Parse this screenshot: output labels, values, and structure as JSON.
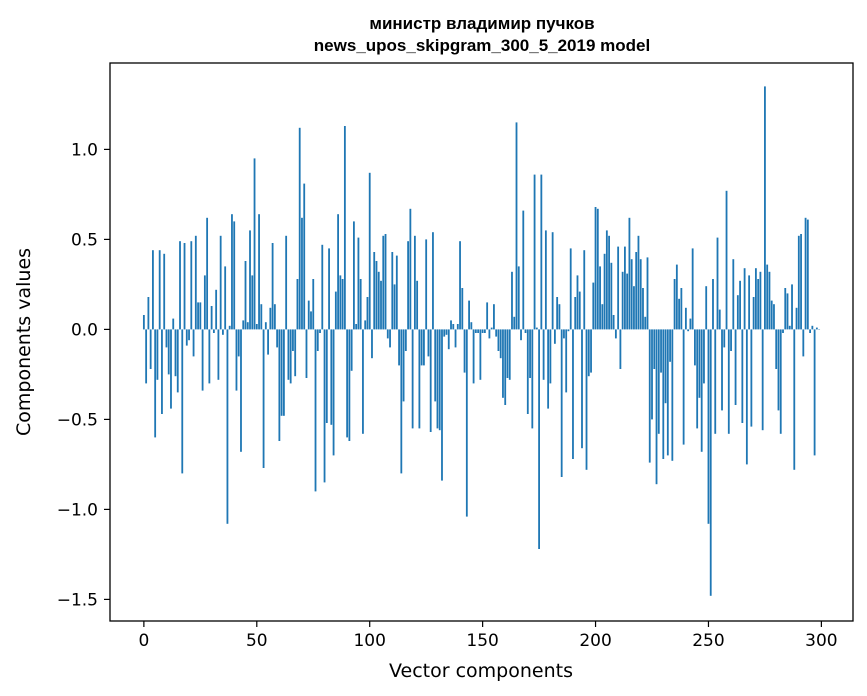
{
  "chart_data": {
    "type": "bar",
    "title": "министр владимир пучков",
    "subtitle": "news_upos_skipgram_300_5_2019 model",
    "xlabel": "Vector components",
    "ylabel": "Components values",
    "xlim": [
      -15,
      314
    ],
    "ylim": [
      -1.62,
      1.48
    ],
    "xticks": [
      0,
      50,
      100,
      150,
      200,
      250,
      300
    ],
    "xtick_labels": [
      "0",
      "50",
      "100",
      "150",
      "200",
      "250",
      "300"
    ],
    "yticks": [
      -1.5,
      -1.0,
      -0.5,
      0.0,
      0.5,
      1.0
    ],
    "ytick_labels": [
      "−1.5",
      "−1.0",
      "−0.5",
      "0.0",
      "0.5",
      "1.0"
    ],
    "bar_color": "#1f77b4",
    "grid": false,
    "legend": "none",
    "values": [
      0.08,
      -0.3,
      0.18,
      -0.22,
      0.44,
      -0.6,
      -0.28,
      0.44,
      -0.47,
      0.42,
      -0.1,
      -0.25,
      -0.44,
      0.06,
      -0.26,
      -0.35,
      0.49,
      -0.8,
      0.48,
      -0.09,
      -0.06,
      0.49,
      -0.15,
      0.52,
      0.15,
      0.15,
      -0.34,
      0.3,
      0.62,
      -0.3,
      0.13,
      -0.02,
      0.22,
      -0.28,
      0.52,
      -0.03,
      0.35,
      -1.08,
      0.02,
      0.64,
      0.6,
      -0.34,
      -0.15,
      -0.68,
      0.05,
      0.38,
      0.04,
      0.55,
      0.3,
      0.95,
      0.03,
      0.64,
      0.14,
      -0.77,
      0.04,
      -0.14,
      0.12,
      0.48,
      0.14,
      -0.1,
      -0.62,
      -0.48,
      -0.48,
      0.52,
      -0.28,
      -0.3,
      -0.12,
      -0.26,
      0.28,
      1.12,
      0.62,
      0.81,
      -0.27,
      0.16,
      0.1,
      0.28,
      -0.9,
      -0.12,
      -0.02,
      0.47,
      -0.85,
      -0.52,
      0.45,
      -0.53,
      -0.7,
      0.21,
      0.64,
      0.3,
      0.28,
      1.13,
      -0.6,
      -0.62,
      -0.23,
      0.6,
      0.03,
      0.51,
      0.28,
      -0.58,
      0.05,
      0.18,
      0.87,
      -0.16,
      0.43,
      0.38,
      0.32,
      0.27,
      0.52,
      0.53,
      -0.05,
      -0.1,
      0.43,
      0.25,
      0.41,
      -0.2,
      -0.8,
      -0.4,
      -0.12,
      0.49,
      0.67,
      -0.55,
      0.52,
      0.27,
      -0.55,
      -0.2,
      -0.2,
      0.5,
      -0.15,
      -0.57,
      0.54,
      -0.4,
      -0.55,
      -0.56,
      -0.84,
      -0.04,
      -0.03,
      -0.11,
      0.05,
      0.03,
      -0.1,
      0.03,
      0.49,
      0.23,
      -0.24,
      -1.04,
      0.16,
      0.04,
      -0.3,
      -0.02,
      -0.02,
      -0.28,
      -0.02,
      -0.02,
      0.15,
      -0.05,
      0.01,
      0.14,
      -0.04,
      -0.12,
      -0.16,
      -0.38,
      -0.42,
      -0.27,
      -0.28,
      0.32,
      0.07,
      1.15,
      0.35,
      -0.06,
      0.66,
      -0.02,
      -0.47,
      -0.27,
      -0.55,
      0.86,
      0.01,
      -1.22,
      0.86,
      -0.28,
      0.55,
      -0.44,
      -0.3,
      0.54,
      -0.08,
      0.18,
      0.14,
      -0.82,
      -0.05,
      -0.35,
      -0.01,
      0.45,
      -0.72,
      0.18,
      0.3,
      0.21,
      -0.66,
      0.44,
      -0.78,
      -0.26,
      -0.24,
      0.26,
      0.68,
      0.67,
      0.35,
      0.14,
      0.42,
      0.55,
      0.52,
      0.37,
      0.08,
      -0.05,
      0.46,
      -0.22,
      0.32,
      0.46,
      0.31,
      0.62,
      0.39,
      0.24,
      0.43,
      0.52,
      0.39,
      0.23,
      0.07,
      0.4,
      -0.74,
      -0.5,
      -0.22,
      -0.86,
      -0.58,
      -0.24,
      -0.72,
      -0.41,
      -0.7,
      -0.18,
      -0.73,
      0.28,
      0.36,
      0.17,
      0.23,
      -0.64,
      0.12,
      -0.01,
      0.06,
      0.45,
      -0.2,
      -0.55,
      -0.38,
      -0.68,
      -0.3,
      0.24,
      -1.08,
      -1.48,
      0.28,
      -0.58,
      0.51,
      0.11,
      -0.45,
      -0.1,
      0.77,
      -0.58,
      -0.12,
      0.39,
      -0.42,
      0.19,
      0.27,
      -0.52,
      0.34,
      -0.75,
      0.3,
      -0.54,
      0.18,
      0.34,
      0.28,
      0.32,
      -0.56,
      1.35,
      0.36,
      0.32,
      0.16,
      0.14,
      -0.22,
      -0.45,
      -0.58,
      -0.02,
      0.23,
      0.2,
      0.02,
      0.25,
      -0.78,
      0.12,
      0.52,
      0.53,
      -0.15,
      0.62,
      0.61,
      -0.02,
      0.02,
      -0.7,
      0.01,
      0.0
    ]
  }
}
